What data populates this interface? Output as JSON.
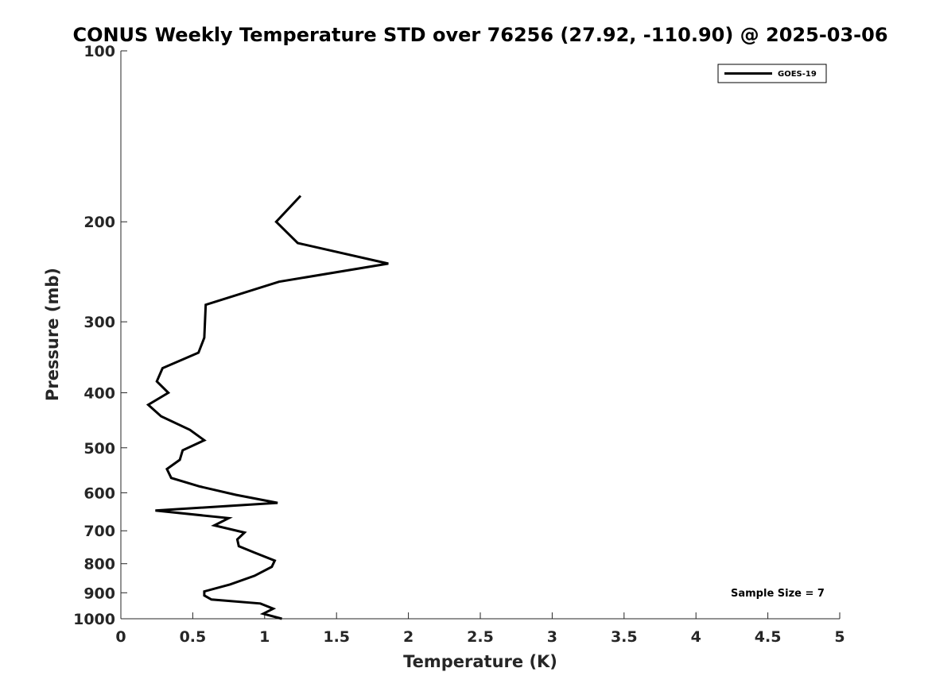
{
  "chart_data": {
    "type": "line",
    "title": "CONUS Weekly Temperature STD over 76256 (27.92, -110.90) @ 2025-03-06",
    "xlabel": "Temperature (K)",
    "ylabel": "Pressure (mb)",
    "xlim": [
      0,
      5
    ],
    "ylim": [
      1000,
      100
    ],
    "y_scale": "log",
    "x_ticks": [
      "0",
      "0.5",
      "1",
      "1.5",
      "2",
      "2.5",
      "3",
      "3.5",
      "4",
      "4.5",
      "5"
    ],
    "y_ticks": [
      "100",
      "200",
      "300",
      "400",
      "500",
      "600",
      "700",
      "800",
      "900",
      "1000"
    ],
    "grid": false,
    "legend_position": "top-right",
    "annotation": "Sample Size = 7",
    "series": [
      {
        "name": "GOES-19",
        "color": "#000000",
        "points": [
          {
            "x": 1.25,
            "y": 180
          },
          {
            "x": 1.08,
            "y": 200
          },
          {
            "x": 1.23,
            "y": 218
          },
          {
            "x": 1.86,
            "y": 237
          },
          {
            "x": 1.1,
            "y": 255
          },
          {
            "x": 0.59,
            "y": 280
          },
          {
            "x": 0.58,
            "y": 320
          },
          {
            "x": 0.54,
            "y": 340
          },
          {
            "x": 0.29,
            "y": 362
          },
          {
            "x": 0.25,
            "y": 382
          },
          {
            "x": 0.33,
            "y": 400
          },
          {
            "x": 0.19,
            "y": 420
          },
          {
            "x": 0.28,
            "y": 440
          },
          {
            "x": 0.48,
            "y": 465
          },
          {
            "x": 0.58,
            "y": 485
          },
          {
            "x": 0.43,
            "y": 505
          },
          {
            "x": 0.41,
            "y": 525
          },
          {
            "x": 0.32,
            "y": 545
          },
          {
            "x": 0.35,
            "y": 565
          },
          {
            "x": 0.55,
            "y": 585
          },
          {
            "x": 0.8,
            "y": 605
          },
          {
            "x": 1.09,
            "y": 625
          },
          {
            "x": 0.24,
            "y": 645
          },
          {
            "x": 0.75,
            "y": 665
          },
          {
            "x": 0.65,
            "y": 685
          },
          {
            "x": 0.86,
            "y": 705
          },
          {
            "x": 0.81,
            "y": 725
          },
          {
            "x": 0.82,
            "y": 745
          },
          {
            "x": 0.93,
            "y": 765
          },
          {
            "x": 1.07,
            "y": 790
          },
          {
            "x": 1.05,
            "y": 810
          },
          {
            "x": 0.93,
            "y": 840
          },
          {
            "x": 0.76,
            "y": 870
          },
          {
            "x": 0.58,
            "y": 895
          },
          {
            "x": 0.58,
            "y": 910
          },
          {
            "x": 0.63,
            "y": 925
          },
          {
            "x": 0.97,
            "y": 940
          },
          {
            "x": 1.06,
            "y": 960
          },
          {
            "x": 0.99,
            "y": 980
          },
          {
            "x": 1.12,
            "y": 1000
          }
        ]
      }
    ]
  }
}
